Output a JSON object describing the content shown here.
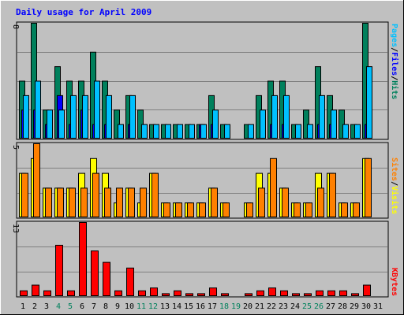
{
  "title": "Daily usage for April 2009",
  "colors": {
    "hits": "#00805c",
    "files": "#0000ff",
    "pages": "#00c0ff",
    "visits": "#ffff00",
    "sites": "#ff8000",
    "kbytes": "#ff0000",
    "weekend_label": "#00805c",
    "weekday_label": "#000000",
    "panel_bg": "#c0c0c0",
    "grid": "#808080"
  },
  "labels": {
    "hits": "Hits",
    "files": "Files",
    "pages": "Pages",
    "visits": "Visits",
    "sites": "Sites",
    "kbytes": "KBytes",
    "sep": "/"
  },
  "chart_data": {
    "type": "bar",
    "title": "Daily usage for April 2009",
    "categories": [
      "1",
      "2",
      "3",
      "4",
      "5",
      "6",
      "7",
      "8",
      "9",
      "10",
      "11",
      "12",
      "13",
      "14",
      "15",
      "16",
      "17",
      "18",
      "19",
      "20",
      "21",
      "22",
      "23",
      "24",
      "25",
      "26",
      "27",
      "28",
      "29",
      "30",
      "31"
    ],
    "weekend_days": [
      "4",
      "5",
      "11",
      "12",
      "18",
      "19",
      "25",
      "26"
    ],
    "panels": [
      {
        "ymax_label": "8",
        "ymax": 8,
        "series": [
          {
            "name": "Hits",
            "values": [
              4,
              8,
              2,
              5,
              4,
              4,
              6,
              4,
              2,
              3,
              2,
              1,
              1,
              1,
              1,
              1,
              3,
              1,
              0,
              1,
              3,
              4,
              4,
              1,
              2,
              5,
              3,
              2,
              1,
              8,
              0
            ]
          },
          {
            "name": "Files",
            "values": [
              2,
              2,
              1,
              3,
              1,
              2,
              1,
              1,
              0,
              1,
              0,
              0,
              0,
              0,
              0,
              1,
              1,
              0,
              0,
              0,
              0,
              1,
              1,
              0,
              0,
              1,
              1,
              0,
              0,
              1,
              0
            ]
          },
          {
            "name": "Pages",
            "values": [
              3,
              4,
              2,
              2,
              3,
              3,
              4,
              3,
              1,
              3,
              1,
              1,
              1,
              1,
              1,
              1,
              2,
              1,
              0,
              1,
              2,
              3,
              3,
              1,
              1,
              3,
              2,
              1,
              1,
              5,
              0
            ]
          }
        ]
      },
      {
        "ymax_label": "5",
        "ymax": 5,
        "series": [
          {
            "name": "Visits",
            "values": [
              3,
              4,
              2,
              2,
              2,
              3,
              4,
              3,
              1,
              2,
              1,
              3,
              1,
              1,
              1,
              1,
              2,
              1,
              0,
              1,
              3,
              3,
              2,
              1,
              1,
              3,
              3,
              1,
              1,
              4,
              0
            ]
          },
          {
            "name": "Sites",
            "values": [
              3,
              5,
              2,
              2,
              2,
              2,
              3,
              2,
              2,
              2,
              2,
              3,
              1,
              1,
              1,
              1,
              2,
              1,
              0,
              1,
              2,
              4,
              2,
              1,
              1,
              2,
              3,
              1,
              1,
              4,
              0
            ]
          }
        ]
      },
      {
        "ymax_label": "13",
        "ymax": 13,
        "series": [
          {
            "name": "KBytes",
            "values": [
              1,
              2,
              1,
              9,
              1,
              13,
              8,
              6,
              1,
              5,
              1,
              1.5,
              0.5,
              1,
              0.5,
              0.5,
              1.5,
              0.5,
              0,
              0.5,
              1,
              1.5,
              1,
              0.5,
              0.5,
              1,
              1,
              1,
              0.5,
              2,
              0
            ]
          }
        ]
      }
    ]
  }
}
